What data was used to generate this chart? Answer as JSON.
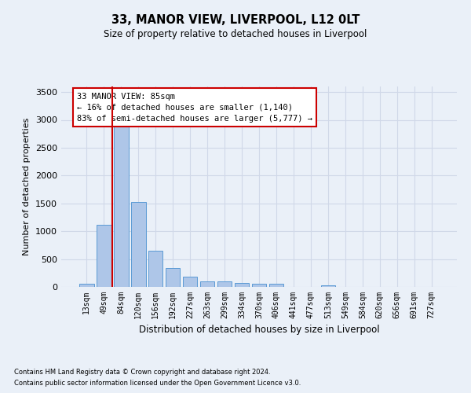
{
  "title1": "33, MANOR VIEW, LIVERPOOL, L12 0LT",
  "title2": "Size of property relative to detached houses in Liverpool",
  "xlabel": "Distribution of detached houses by size in Liverpool",
  "ylabel": "Number of detached properties",
  "footnote1": "Contains HM Land Registry data © Crown copyright and database right 2024.",
  "footnote2": "Contains public sector information licensed under the Open Government Licence v3.0.",
  "annotation_title": "33 MANOR VIEW: 85sqm",
  "annotation_line1": "← 16% of detached houses are smaller (1,140)",
  "annotation_line2": "83% of semi-detached houses are larger (5,777) →",
  "bar_labels": [
    "13sqm",
    "49sqm",
    "84sqm",
    "120sqm",
    "156sqm",
    "192sqm",
    "227sqm",
    "263sqm",
    "299sqm",
    "334sqm",
    "370sqm",
    "406sqm",
    "441sqm",
    "477sqm",
    "513sqm",
    "549sqm",
    "584sqm",
    "620sqm",
    "656sqm",
    "691sqm",
    "727sqm"
  ],
  "bar_values": [
    55,
    1110,
    2940,
    1520,
    650,
    340,
    185,
    95,
    95,
    70,
    55,
    55,
    5,
    5,
    30,
    5,
    5,
    5,
    5,
    5,
    5
  ],
  "bar_color": "#aec6e8",
  "bar_edge_color": "#5b9bd5",
  "red_line_index": 2,
  "ylim": [
    0,
    3600
  ],
  "yticks": [
    0,
    500,
    1000,
    1500,
    2000,
    2500,
    3000,
    3500
  ],
  "annotation_box_color": "#ffffff",
  "annotation_box_edge": "#cc0000",
  "red_line_color": "#cc0000",
  "grid_color": "#d0d8e8",
  "bg_color": "#eaf0f8",
  "plot_bg_color": "#eaf0f8"
}
